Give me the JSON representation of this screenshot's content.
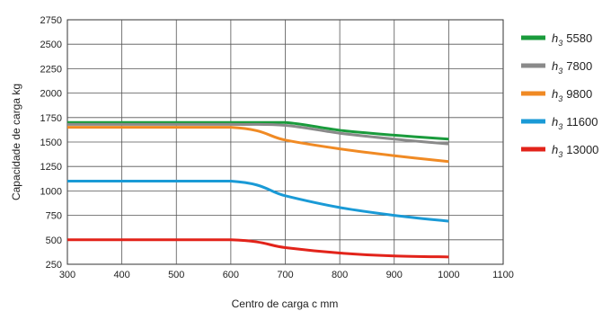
{
  "chart_data": {
    "type": "line",
    "title": "",
    "xlabel": "Centro de carga c mm",
    "ylabel": "Capacidade de carga kg",
    "xlim": [
      300,
      1100
    ],
    "ylim": [
      250,
      2750
    ],
    "x_ticks": [
      300,
      400,
      500,
      600,
      700,
      800,
      900,
      1000,
      1100
    ],
    "y_ticks": [
      250,
      500,
      750,
      1000,
      1250,
      1500,
      1750,
      2000,
      2250,
      2500,
      2750
    ],
    "grid": true,
    "legend_position": "right",
    "series": [
      {
        "name": "h3 5580",
        "legend_prefix": "h",
        "legend_sub": "3",
        "legend_value": "5580",
        "color": "#1a9b3c",
        "x": [
          300,
          600,
          700,
          800,
          900,
          1000
        ],
        "y": [
          1700,
          1700,
          1700,
          1620,
          1570,
          1530
        ]
      },
      {
        "name": "h3 7800",
        "legend_prefix": "h",
        "legend_sub": "3",
        "legend_value": "7800",
        "color": "#8a8a8a",
        "x": [
          300,
          600,
          700,
          800,
          900,
          1000
        ],
        "y": [
          1680,
          1680,
          1670,
          1590,
          1530,
          1480
        ]
      },
      {
        "name": "h3 9800",
        "legend_prefix": "h",
        "legend_sub": "3",
        "legend_value": "9800",
        "color": "#f08a24",
        "x": [
          300,
          600,
          700,
          800,
          900,
          1000
        ],
        "y": [
          1650,
          1650,
          1520,
          1430,
          1360,
          1300
        ]
      },
      {
        "name": "h3 11600",
        "legend_prefix": "h",
        "legend_sub": "3",
        "legend_value": "11600",
        "color": "#1a9ad6",
        "x": [
          300,
          600,
          700,
          800,
          900,
          1000
        ],
        "y": [
          1100,
          1100,
          950,
          830,
          750,
          690
        ]
      },
      {
        "name": "h3 13000",
        "legend_prefix": "h",
        "legend_sub": "3",
        "legend_value": "13000",
        "color": "#e2231a",
        "x": [
          300,
          600,
          700,
          800,
          900,
          1000
        ],
        "y": [
          500,
          500,
          420,
          365,
          335,
          325
        ]
      }
    ]
  }
}
